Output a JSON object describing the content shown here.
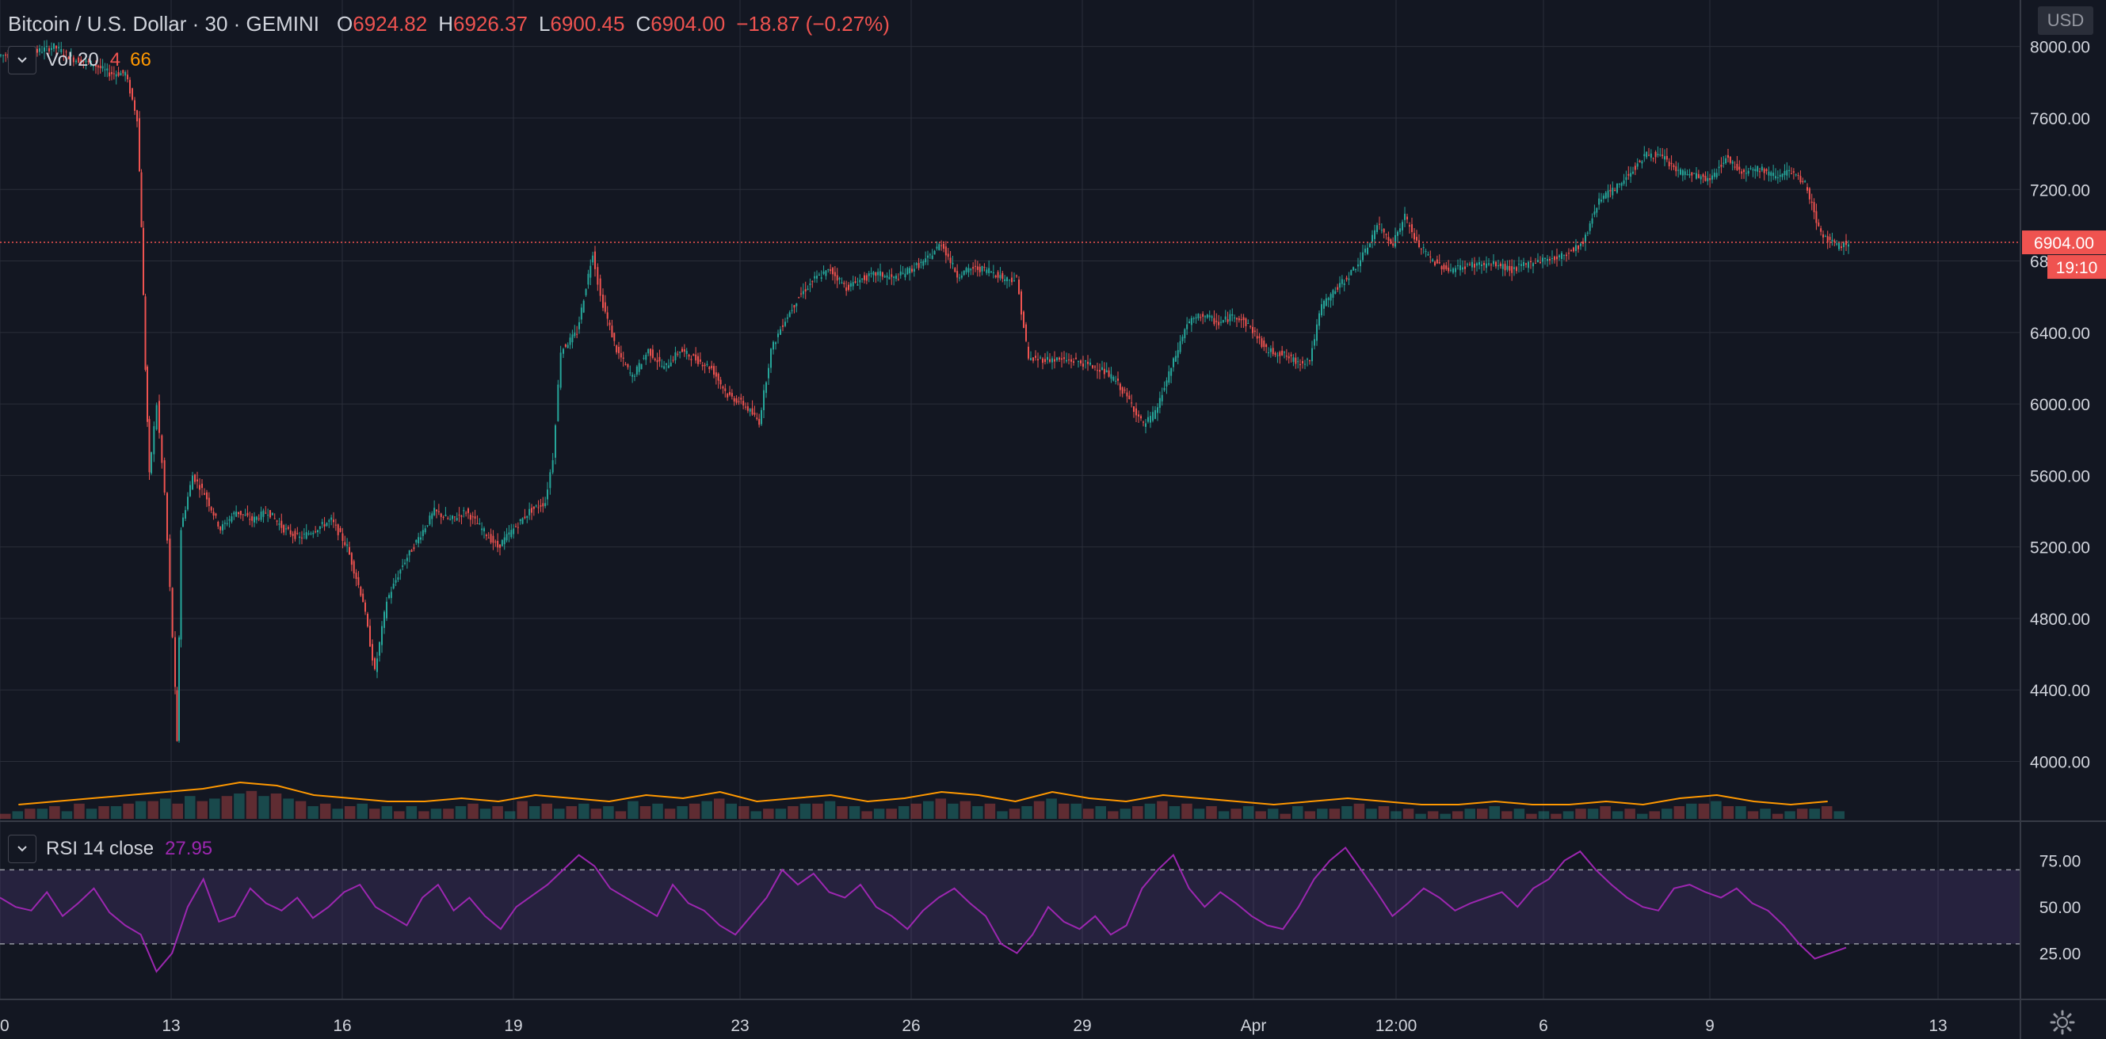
{
  "header": {
    "symbol": "Bitcoin / U.S. Dollar",
    "interval": "30",
    "exchange": "GEMINI",
    "open_label": "O",
    "open": "6924.82",
    "high_label": "H",
    "high": "6926.37",
    "low_label": "L",
    "low": "6900.45",
    "close_label": "C",
    "close": "6904.00",
    "change": "−18.87 (−0.27%)"
  },
  "volume_legend": {
    "name": "Vol 20",
    "value1": "4",
    "value2": "66"
  },
  "rsi_legend": {
    "name": "RSI 14 close",
    "value": "27.95"
  },
  "currency_button": "USD",
  "icons": [
    "chevron-down-icon",
    "settings-gear-icon"
  ],
  "colors": {
    "background": "#131722",
    "up": "#26a69a",
    "down": "#ef5350",
    "volume_ma": "#ff9800",
    "rsi": "#9c27b0",
    "grid": "#2a2e39"
  },
  "chart_data": [
    {
      "type": "candlestick",
      "title": "Bitcoin / U.S. Dollar, 30, GEMINI",
      "x_ticks": [
        "0",
        "13",
        "16",
        "19",
        "23",
        "26",
        "29",
        "Apr",
        "12:00",
        "6",
        "9",
        "13"
      ],
      "y_ticks": [
        "8000.00",
        "7600.00",
        "7200.00",
        "6800.00",
        "6400.00",
        "6000.00",
        "5600.00",
        "5200.00",
        "4800.00",
        "4400.00",
        "4000.00"
      ],
      "ylim": [
        3670,
        8260
      ],
      "last_price": "6904.00",
      "last_price_value": 6904,
      "countdown": "19:10",
      "price_path": [
        [
          0,
          7950
        ],
        [
          40,
          7960
        ],
        [
          70,
          8000
        ],
        [
          95,
          7930
        ],
        [
          120,
          7900
        ],
        [
          140,
          7850
        ],
        [
          160,
          7850
        ],
        [
          175,
          7600
        ],
        [
          180,
          7000
        ],
        [
          185,
          6200
        ],
        [
          190,
          5600
        ],
        [
          200,
          6000
        ],
        [
          210,
          5500
        ],
        [
          220,
          4700
        ],
        [
          225,
          4100
        ],
        [
          230,
          5300
        ],
        [
          245,
          5600
        ],
        [
          260,
          5500
        ],
        [
          280,
          5300
        ],
        [
          300,
          5400
        ],
        [
          320,
          5350
        ],
        [
          340,
          5400
        ],
        [
          360,
          5300
        ],
        [
          380,
          5250
        ],
        [
          400,
          5300
        ],
        [
          420,
          5350
        ],
        [
          440,
          5200
        ],
        [
          460,
          4900
        ],
        [
          475,
          4500
        ],
        [
          490,
          4900
        ],
        [
          510,
          5100
        ],
        [
          530,
          5250
        ],
        [
          550,
          5400
        ],
        [
          570,
          5350
        ],
        [
          590,
          5400
        ],
        [
          610,
          5300
        ],
        [
          630,
          5200
        ],
        [
          650,
          5300
        ],
        [
          670,
          5400
        ],
        [
          690,
          5450
        ],
        [
          700,
          5700
        ],
        [
          710,
          6300
        ],
        [
          730,
          6400
        ],
        [
          750,
          6850
        ],
        [
          760,
          6600
        ],
        [
          780,
          6300
        ],
        [
          800,
          6150
        ],
        [
          820,
          6300
        ],
        [
          840,
          6200
        ],
        [
          860,
          6300
        ],
        [
          880,
          6250
        ],
        [
          900,
          6200
        ],
        [
          920,
          6050
        ],
        [
          940,
          6000
        ],
        [
          960,
          5900
        ],
        [
          975,
          6300
        ],
        [
          990,
          6450
        ],
        [
          1010,
          6600
        ],
        [
          1030,
          6700
        ],
        [
          1050,
          6750
        ],
        [
          1070,
          6650
        ],
        [
          1090,
          6700
        ],
        [
          1110,
          6730
        ],
        [
          1130,
          6700
        ],
        [
          1150,
          6750
        ],
        [
          1170,
          6800
        ],
        [
          1190,
          6900
        ],
        [
          1210,
          6720
        ],
        [
          1230,
          6760
        ],
        [
          1250,
          6750
        ],
        [
          1270,
          6700
        ],
        [
          1285,
          6700
        ],
        [
          1300,
          6250
        ],
        [
          1330,
          6250
        ],
        [
          1360,
          6240
        ],
        [
          1390,
          6200
        ],
        [
          1410,
          6130
        ],
        [
          1430,
          6000
        ],
        [
          1445,
          5880
        ],
        [
          1460,
          5950
        ],
        [
          1480,
          6200
        ],
        [
          1500,
          6450
        ],
        [
          1520,
          6500
        ],
        [
          1540,
          6450
        ],
        [
          1560,
          6500
        ],
        [
          1580,
          6430
        ],
        [
          1600,
          6300
        ],
        [
          1620,
          6280
        ],
        [
          1640,
          6230
        ],
        [
          1655,
          6250
        ],
        [
          1670,
          6550
        ],
        [
          1690,
          6650
        ],
        [
          1710,
          6750
        ],
        [
          1725,
          6850
        ],
        [
          1740,
          7000
        ],
        [
          1760,
          6900
        ],
        [
          1775,
          7050
        ],
        [
          1790,
          6900
        ],
        [
          1810,
          6800
        ],
        [
          1830,
          6750
        ],
        [
          1860,
          6780
        ],
        [
          1890,
          6780
        ],
        [
          1910,
          6750
        ],
        [
          1940,
          6800
        ],
        [
          1970,
          6820
        ],
        [
          2000,
          6900
        ],
        [
          2020,
          7150
        ],
        [
          2040,
          7200
        ],
        [
          2060,
          7300
        ],
        [
          2080,
          7400
        ],
        [
          2100,
          7380
        ],
        [
          2120,
          7300
        ],
        [
          2140,
          7280
        ],
        [
          2160,
          7250
        ],
        [
          2180,
          7380
        ],
        [
          2200,
          7300
        ],
        [
          2220,
          7320
        ],
        [
          2240,
          7280
        ],
        [
          2260,
          7300
        ],
        [
          2280,
          7230
        ],
        [
          2300,
          6950
        ],
        [
          2320,
          6880
        ],
        [
          2335,
          6904
        ]
      ]
    },
    {
      "type": "bar",
      "title": "Vol 20",
      "series": [
        {
          "name": "Vol 20",
          "values": [
            2,
            3,
            4,
            5,
            6,
            7,
            9,
            8,
            5,
            4,
            3,
            3,
            4,
            3,
            5,
            4,
            3,
            5,
            4,
            6,
            3,
            4,
            5,
            3,
            4,
            6,
            5,
            3,
            6,
            4,
            3,
            5,
            4,
            3,
            2,
            3,
            4,
            3,
            2,
            2,
            3,
            2,
            2,
            3,
            2,
            4,
            5,
            3,
            2,
            3
          ]
        }
      ]
    },
    {
      "type": "line",
      "title": "RSI 14 close",
      "y_ticks": [
        "75.00",
        "50.00",
        "25.00"
      ],
      "ylim": [
        0,
        95
      ],
      "band": [
        30,
        70
      ],
      "series": [
        {
          "name": "RSI 14 close",
          "values": [
            55,
            50,
            48,
            58,
            45,
            52,
            60,
            47,
            40,
            35,
            15,
            25,
            50,
            65,
            42,
            45,
            60,
            52,
            48,
            55,
            44,
            50,
            58,
            62,
            50,
            45,
            40,
            55,
            62,
            48,
            55,
            45,
            38,
            50,
            56,
            62,
            70,
            78,
            72,
            60,
            55,
            50,
            45,
            62,
            52,
            48,
            40,
            35,
            45,
            55,
            70,
            62,
            68,
            58,
            55,
            62,
            50,
            45,
            38,
            48,
            55,
            60,
            52,
            45,
            30,
            25,
            35,
            50,
            42,
            38,
            45,
            35,
            40,
            60,
            70,
            78,
            60,
            50,
            58,
            52,
            45,
            40,
            38,
            50,
            65,
            75,
            82,
            70,
            58,
            45,
            52,
            60,
            55,
            48,
            52,
            55,
            58,
            50,
            60,
            65,
            75,
            80,
            70,
            62,
            55,
            50,
            48,
            60,
            62,
            58,
            55,
            60,
            52,
            48,
            40,
            30,
            22,
            25,
            28
          ]
        }
      ]
    }
  ]
}
